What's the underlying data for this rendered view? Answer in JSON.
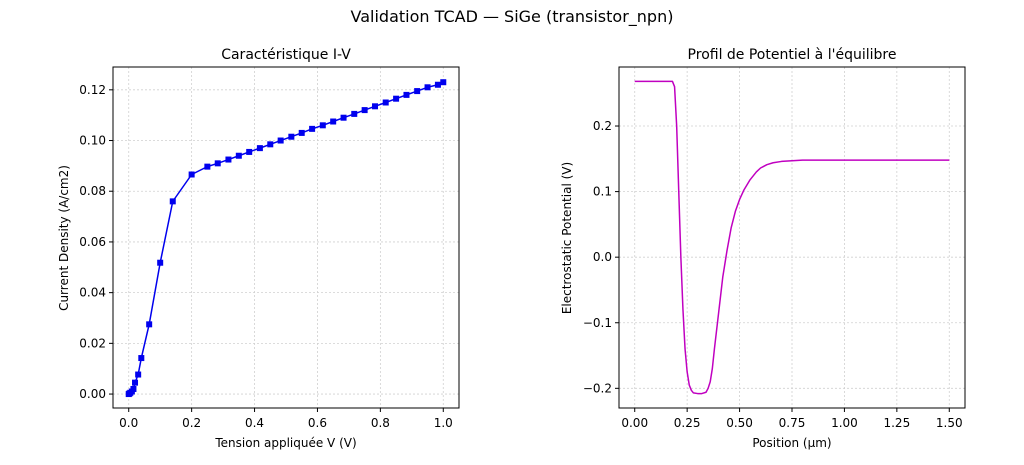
{
  "figure": {
    "suptitle": "Validation TCAD — SiGe (transistor_npn)"
  },
  "chart_data": [
    {
      "type": "line",
      "title": "Caractéristique I-V",
      "xlabel": "Tension appliquée V (V)",
      "ylabel": "Current Density (A/cm2)",
      "xlim": [
        -0.05,
        1.05
      ],
      "ylim": [
        -0.0055,
        0.129
      ],
      "xticks": [
        0.0,
        0.2,
        0.4,
        0.6,
        0.8,
        1.0
      ],
      "xtick_labels": [
        "0.0",
        "0.2",
        "0.4",
        "0.6",
        "0.8",
        "1.0"
      ],
      "yticks": [
        0.0,
        0.02,
        0.04,
        0.06,
        0.08,
        0.1,
        0.12
      ],
      "ytick_labels": [
        "0.00",
        "0.02",
        "0.04",
        "0.06",
        "0.08",
        "0.10",
        "0.12"
      ],
      "grid": true,
      "color": "#0000ee",
      "marker": "square",
      "series": [
        {
          "x": [
            0.0,
            0.002,
            0.005,
            0.01,
            0.015,
            0.02,
            0.03,
            0.04,
            0.065,
            0.1,
            0.14,
            0.2,
            0.25,
            0.283,
            0.317,
            0.35,
            0.383,
            0.417,
            0.45,
            0.483,
            0.517,
            0.55,
            0.583,
            0.617,
            0.65,
            0.683,
            0.717,
            0.75,
            0.783,
            0.817,
            0.85,
            0.883,
            0.917,
            0.95,
            0.983,
            1.0
          ],
          "y": [
            0.0,
            0.0002,
            0.0005,
            0.001,
            0.002,
            0.0045,
            0.0077,
            0.0142,
            0.0275,
            0.0518,
            0.076,
            0.0866,
            0.0897,
            0.091,
            0.0925,
            0.094,
            0.0955,
            0.097,
            0.0985,
            0.1,
            0.1015,
            0.103,
            0.1046,
            0.106,
            0.1075,
            0.109,
            0.1105,
            0.112,
            0.1135,
            0.115,
            0.1165,
            0.118,
            0.1195,
            0.121,
            0.122,
            0.123
          ]
        }
      ]
    },
    {
      "type": "line",
      "title": "Profil de Potentiel à l'équilibre",
      "xlabel": "Position (µm)",
      "ylabel": "Electrostatic Potential (V)",
      "xlim": [
        -0.075,
        1.575
      ],
      "ylim": [
        -0.23,
        0.29
      ],
      "xticks": [
        0.0,
        0.25,
        0.5,
        0.75,
        1.0,
        1.25,
        1.5
      ],
      "xtick_labels": [
        "0.00",
        "0.25",
        "0.50",
        "0.75",
        "1.00",
        "1.25",
        "1.50"
      ],
      "yticks": [
        -0.2,
        -0.1,
        0.0,
        0.1,
        0.2
      ],
      "ytick_labels": [
        "−0.2",
        "−0.1",
        "0.0",
        "0.1",
        "0.2"
      ],
      "grid": true,
      "color": "#c000c0",
      "series": [
        {
          "x": [
            0.0,
            0.1,
            0.18,
            0.19,
            0.2,
            0.21,
            0.22,
            0.23,
            0.24,
            0.25,
            0.26,
            0.27,
            0.28,
            0.3,
            0.32,
            0.34,
            0.35,
            0.36,
            0.37,
            0.38,
            0.4,
            0.42,
            0.44,
            0.46,
            0.48,
            0.5,
            0.52,
            0.55,
            0.58,
            0.6,
            0.63,
            0.66,
            0.7,
            0.75,
            0.8,
            0.9,
            1.0,
            1.25,
            1.5
          ],
          "y": [
            0.268,
            0.268,
            0.268,
            0.26,
            0.2,
            0.1,
            0.0,
            -0.08,
            -0.14,
            -0.175,
            -0.195,
            -0.203,
            -0.207,
            -0.208,
            -0.208,
            -0.206,
            -0.2,
            -0.19,
            -0.17,
            -0.14,
            -0.085,
            -0.03,
            0.01,
            0.045,
            0.07,
            0.088,
            0.102,
            0.118,
            0.13,
            0.136,
            0.141,
            0.144,
            0.146,
            0.147,
            0.148,
            0.148,
            0.148,
            0.148,
            0.148
          ]
        }
      ]
    }
  ]
}
